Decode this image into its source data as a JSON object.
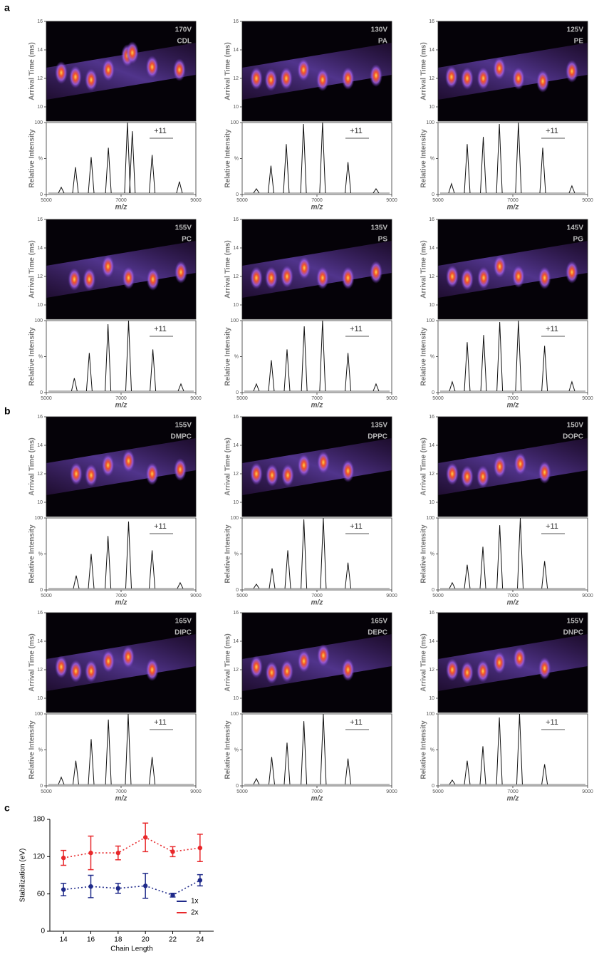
{
  "panel_labels": [
    "a",
    "b",
    "c"
  ],
  "chart_data": [
    {
      "type": "ims",
      "voltage": "170V",
      "lipid": "CDL",
      "heatmap_ylabel": "Arrival Time (ms)",
      "heatmap_ylim": [
        9,
        16
      ],
      "heatmap_yticks": [
        10,
        12,
        14,
        16
      ],
      "spectrum_ylabel": "Relative Intensity",
      "spectrum_ylim": [
        0,
        100
      ],
      "spectrum_yticks": [
        0,
        {
          "value": 50,
          "label": "%"
        },
        100
      ],
      "annotation": "+11",
      "xlabel": "m/z",
      "xlim": [
        5000,
        9000
      ],
      "xticks": [
        5000,
        7000,
        9000
      ],
      "peaks": {
        "mz": [
          5400,
          5780,
          6200,
          6660,
          7170,
          7300,
          7830,
          8560
        ],
        "intensity": [
          10,
          38,
          52,
          65,
          100,
          88,
          55,
          18
        ],
        "arrival": [
          12.4,
          12.1,
          11.9,
          12.6,
          13.6,
          13.8,
          12.8,
          12.6
        ]
      }
    },
    {
      "type": "ims",
      "voltage": "130V",
      "lipid": "PA",
      "heatmap_ylabel": "Arrival Time (ms)",
      "heatmap_ylim": [
        9,
        16
      ],
      "heatmap_yticks": [
        10,
        12,
        14,
        16
      ],
      "spectrum_ylabel": "Relative Intensity",
      "spectrum_ylim": [
        0,
        100
      ],
      "spectrum_yticks": [
        0,
        {
          "value": 50,
          "label": "%"
        },
        100
      ],
      "annotation": "+11",
      "xlabel": "m/z",
      "xlim": [
        5000,
        9000
      ],
      "xticks": [
        5000,
        7000,
        9000
      ],
      "peaks": {
        "mz": [
          5380,
          5770,
          6180,
          6640,
          7150,
          7830,
          8580
        ],
        "intensity": [
          8,
          40,
          70,
          98,
          100,
          45,
          8
        ],
        "arrival": [
          12.0,
          11.9,
          12.0,
          12.6,
          11.9,
          12.0,
          12.2
        ]
      }
    },
    {
      "type": "ims",
      "voltage": "125V",
      "lipid": "PE",
      "heatmap_ylabel": "Arrival Time (ms)",
      "heatmap_ylim": [
        9,
        16
      ],
      "heatmap_yticks": [
        10,
        12,
        14,
        16
      ],
      "spectrum_ylabel": "Relative Intensity",
      "spectrum_ylim": [
        0,
        100
      ],
      "spectrum_yticks": [
        0,
        {
          "value": 50,
          "label": "%"
        },
        100
      ],
      "annotation": "+11",
      "xlabel": "m/z",
      "xlim": [
        5000,
        9000
      ],
      "xticks": [
        5000,
        7000,
        9000
      ],
      "peaks": {
        "mz": [
          5360,
          5780,
          6210,
          6640,
          7150,
          7800,
          8580
        ],
        "intensity": [
          15,
          70,
          80,
          98,
          100,
          65,
          12
        ],
        "arrival": [
          12.1,
          12.0,
          12.0,
          12.7,
          12.0,
          11.8,
          12.5
        ]
      }
    },
    {
      "type": "ims",
      "voltage": "155V",
      "lipid": "PC",
      "heatmap_ylabel": "Arrival Time (ms)",
      "heatmap_ylim": [
        9,
        16
      ],
      "heatmap_yticks": [
        10,
        12,
        14,
        16
      ],
      "spectrum_ylabel": "Relative Intensity",
      "spectrum_ylim": [
        0,
        100
      ],
      "spectrum_yticks": [
        0,
        {
          "value": 50,
          "label": "%"
        },
        100
      ],
      "annotation": "+11",
      "xlabel": "m/z",
      "xlim": [
        5000,
        9000
      ],
      "xticks": [
        5000,
        7000,
        9000
      ],
      "peaks": {
        "mz": [
          5750,
          6150,
          6650,
          7200,
          7850,
          8600
        ],
        "intensity": [
          20,
          55,
          95,
          100,
          60,
          12
        ],
        "arrival": [
          11.8,
          11.8,
          12.7,
          11.9,
          11.8,
          12.3
        ]
      }
    },
    {
      "type": "ims",
      "voltage": "135V",
      "lipid": "PS",
      "heatmap_ylabel": "Arrival Time (ms)",
      "heatmap_ylim": [
        9,
        16
      ],
      "heatmap_yticks": [
        10,
        12,
        14,
        16
      ],
      "spectrum_ylabel": "Relative Intensity",
      "spectrum_ylim": [
        0,
        100
      ],
      "spectrum_yticks": [
        0,
        {
          "value": 50,
          "label": "%"
        },
        100
      ],
      "annotation": "+11",
      "xlabel": "m/z",
      "xlim": [
        5000,
        9000
      ],
      "xticks": [
        5000,
        7000,
        9000
      ],
      "peaks": {
        "mz": [
          5380,
          5780,
          6200,
          6660,
          7150,
          7830,
          8580
        ],
        "intensity": [
          12,
          45,
          60,
          92,
          100,
          55,
          12
        ],
        "arrival": [
          11.9,
          11.9,
          12.0,
          12.6,
          11.9,
          11.9,
          12.3
        ]
      }
    },
    {
      "type": "ims",
      "voltage": "145V",
      "lipid": "PG",
      "heatmap_ylabel": "Arrival Time (ms)",
      "heatmap_ylim": [
        9,
        16
      ],
      "heatmap_yticks": [
        10,
        12,
        14,
        16
      ],
      "spectrum_ylabel": "Relative Intensity",
      "spectrum_ylim": [
        0,
        100
      ],
      "spectrum_yticks": [
        0,
        {
          "value": 50,
          "label": "%"
        },
        100
      ],
      "annotation": "+11",
      "xlabel": "m/z",
      "xlim": [
        5000,
        9000
      ],
      "xticks": [
        5000,
        7000,
        9000
      ],
      "peaks": {
        "mz": [
          5380,
          5780,
          6220,
          6650,
          7150,
          7850,
          8580
        ],
        "intensity": [
          15,
          70,
          80,
          98,
          100,
          65,
          15
        ],
        "arrival": [
          12.0,
          11.8,
          11.9,
          12.7,
          12.0,
          11.9,
          12.3
        ]
      }
    },
    {
      "type": "ims",
      "voltage": "155V",
      "lipid": "DMPC",
      "heatmap_ylabel": "Arrival Time (ms)",
      "heatmap_ylim": [
        9,
        16
      ],
      "heatmap_yticks": [
        10,
        12,
        14,
        16
      ],
      "spectrum_ylabel": "Relative Intensity",
      "spectrum_ylim": [
        0,
        100
      ],
      "spectrum_yticks": [
        0,
        {
          "value": 50,
          "label": "%"
        },
        100
      ],
      "annotation": "+11",
      "xlabel": "m/z",
      "xlim": [
        5000,
        9000
      ],
      "xticks": [
        5000,
        7000,
        9000
      ],
      "peaks": {
        "mz": [
          5800,
          6200,
          6650,
          7200,
          7830,
          8580
        ],
        "intensity": [
          20,
          50,
          75,
          95,
          55,
          10
        ],
        "arrival": [
          12.0,
          11.9,
          12.6,
          12.9,
          12.0,
          12.3
        ]
      }
    },
    {
      "type": "ims",
      "voltage": "135V",
      "lipid": "DPPC",
      "heatmap_ylabel": "Arrival Time (ms)",
      "heatmap_ylim": [
        9,
        16
      ],
      "heatmap_yticks": [
        10,
        12,
        14,
        16
      ],
      "spectrum_ylabel": "Relative Intensity",
      "spectrum_ylim": [
        0,
        100
      ],
      "spectrum_yticks": [
        0,
        {
          "value": 50,
          "label": "%"
        },
        100
      ],
      "annotation": "+11",
      "xlabel": "m/z",
      "xlim": [
        5000,
        9000
      ],
      "xticks": [
        5000,
        7000,
        9000
      ],
      "peaks": {
        "mz": [
          5380,
          5800,
          6220,
          6650,
          7170,
          7830
        ],
        "intensity": [
          8,
          30,
          55,
          98,
          100,
          38
        ],
        "arrival": [
          12.0,
          11.9,
          11.9,
          12.6,
          12.8,
          12.2
        ]
      }
    },
    {
      "type": "ims",
      "voltage": "150V",
      "lipid": "DOPC",
      "heatmap_ylabel": "Arrival Time (ms)",
      "heatmap_ylim": [
        9,
        16
      ],
      "heatmap_yticks": [
        10,
        12,
        14,
        16
      ],
      "spectrum_ylabel": "Relative Intensity",
      "spectrum_ylim": [
        0,
        100
      ],
      "spectrum_yticks": [
        0,
        {
          "value": 50,
          "label": "%"
        },
        100
      ],
      "annotation": "+11",
      "xlabel": "m/z",
      "xlim": [
        5000,
        9000
      ],
      "xticks": [
        5000,
        7000,
        9000
      ],
      "peaks": {
        "mz": [
          5380,
          5780,
          6200,
          6650,
          7200,
          7850
        ],
        "intensity": [
          10,
          35,
          60,
          90,
          100,
          40
        ],
        "arrival": [
          12.0,
          11.8,
          11.8,
          12.5,
          12.7,
          12.1
        ]
      }
    },
    {
      "type": "ims",
      "voltage": "165V",
      "lipid": "DIPC",
      "heatmap_ylabel": "Arrival Time (ms)",
      "heatmap_ylim": [
        9,
        16
      ],
      "heatmap_yticks": [
        10,
        12,
        14,
        16
      ],
      "spectrum_ylabel": "Relative Intensity",
      "spectrum_ylim": [
        0,
        100
      ],
      "spectrum_yticks": [
        0,
        {
          "value": 50,
          "label": "%"
        },
        100
      ],
      "annotation": "+11",
      "xlabel": "m/z",
      "xlim": [
        5000,
        9000
      ],
      "xticks": [
        5000,
        7000,
        9000
      ],
      "peaks": {
        "mz": [
          5400,
          5790,
          6200,
          6660,
          7190,
          7830
        ],
        "intensity": [
          12,
          35,
          65,
          92,
          100,
          40
        ],
        "arrival": [
          12.2,
          11.9,
          11.9,
          12.6,
          12.9,
          12.0
        ]
      }
    },
    {
      "type": "ims",
      "voltage": "165V",
      "lipid": "DEPC",
      "heatmap_ylabel": "Arrival Time (ms)",
      "heatmap_ylim": [
        9,
        16
      ],
      "heatmap_yticks": [
        10,
        12,
        14,
        16
      ],
      "spectrum_ylabel": "Relative Intensity",
      "spectrum_ylim": [
        0,
        100
      ],
      "spectrum_yticks": [
        0,
        {
          "value": 50,
          "label": "%"
        },
        100
      ],
      "annotation": "+11",
      "xlabel": "m/z",
      "xlim": [
        5000,
        9000
      ],
      "xticks": [
        5000,
        7000,
        9000
      ],
      "peaks": {
        "mz": [
          5380,
          5790,
          6200,
          6650,
          7170,
          7830
        ],
        "intensity": [
          10,
          40,
          60,
          90,
          100,
          38
        ],
        "arrival": [
          12.2,
          11.8,
          11.9,
          12.6,
          13.0,
          12.0
        ]
      }
    },
    {
      "type": "ims",
      "voltage": "155V",
      "lipid": "DNPC",
      "heatmap_ylabel": "Arrival Time (ms)",
      "heatmap_ylim": [
        9,
        16
      ],
      "heatmap_yticks": [
        10,
        12,
        14,
        16
      ],
      "spectrum_ylabel": "Relative Intensity",
      "spectrum_ylim": [
        0,
        100
      ],
      "spectrum_yticks": [
        0,
        {
          "value": 50,
          "label": "%"
        },
        100
      ],
      "annotation": "+11",
      "xlabel": "m/z",
      "xlim": [
        5000,
        9000
      ],
      "xticks": [
        5000,
        7000,
        9000
      ],
      "peaks": {
        "mz": [
          5380,
          5780,
          6200,
          6640,
          7180,
          7850
        ],
        "intensity": [
          8,
          35,
          55,
          95,
          100,
          30
        ],
        "arrival": [
          12.0,
          11.8,
          11.9,
          12.5,
          12.8,
          12.1
        ]
      }
    },
    {
      "type": "errorbar",
      "xlabel": "Chain Length",
      "ylabel": "Stabilization (eV)",
      "x": [
        14,
        16,
        18,
        20,
        22,
        24
      ],
      "xlim": [
        13,
        25
      ],
      "xticks": [
        14,
        16,
        18,
        20,
        22,
        24
      ],
      "ylim": [
        0,
        180
      ],
      "yticks": [
        0,
        60,
        120,
        180
      ],
      "legend": "lower right",
      "series": [
        {
          "name": "1x",
          "color": "#1f2a8a",
          "values": [
            67,
            72,
            69,
            73,
            58,
            82
          ],
          "errors": [
            10,
            18,
            8,
            20,
            3,
            9
          ]
        },
        {
          "name": "2x",
          "color": "#e8282b",
          "values": [
            118,
            126,
            126,
            151,
            128,
            134
          ],
          "errors": [
            12,
            27,
            11,
            23,
            8,
            22
          ]
        }
      ]
    }
  ]
}
